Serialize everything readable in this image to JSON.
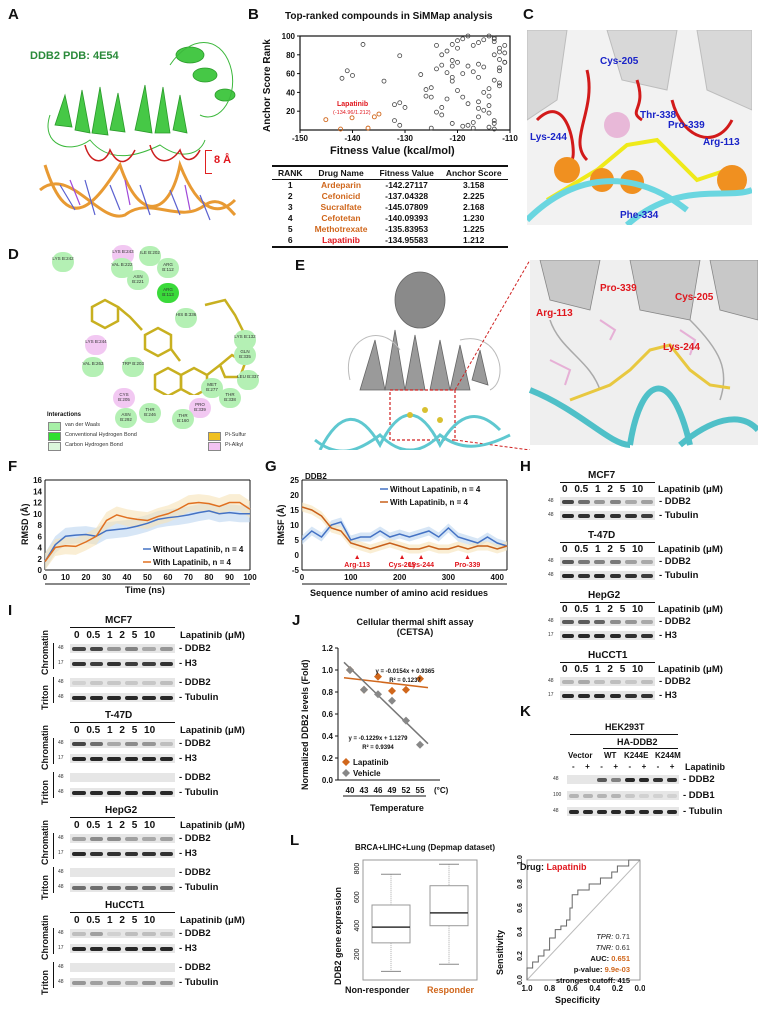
{
  "panels": {
    "A": {
      "label": "A",
      "title": "DDB2 PDB: 4E54",
      "scale": "8 Å",
      "colors": {
        "protein": "#3fbf3f",
        "dna": "#e89a33",
        "loops": "#cc1f1f"
      }
    },
    "B": {
      "label": "B",
      "title": "Top-ranked compounds in SiMMap analysis",
      "annotation": "Lapatinib",
      "annotation_sub": "(-134.96/1.212)"
    },
    "C": {
      "label": "C",
      "residues": [
        "Cys-205",
        "Thr-338",
        "Lys-244",
        "Pro-339",
        "Arg-113",
        "Phe-334"
      ]
    },
    "D": {
      "label": "D",
      "legend_title": "Interactions",
      "legend": [
        {
          "name": "van der Waals",
          "color": "#a7f0a7"
        },
        {
          "name": "Conventional Hydrogen Bond",
          "color": "#2ee02e"
        },
        {
          "name": "Carbon Hydrogen Bond",
          "color": "#dcf7dc"
        },
        {
          "name": "Pi-Sulfur",
          "color": "#f0c020"
        },
        {
          "name": "Pi-Alkyl",
          "color": "#f3c3f3"
        }
      ],
      "residues": [
        {
          "name": "LYS B:242",
          "type": "vdw"
        },
        {
          "name": "LYS B:243",
          "type": "alkyl"
        },
        {
          "name": "ILE B:202",
          "type": "vdw"
        },
        {
          "name": "VAL B:222",
          "type": "vdw"
        },
        {
          "name": "ARG B:112",
          "type": "vdw"
        },
        {
          "name": "ASN B:221",
          "type": "vdw"
        },
        {
          "name": "ARG B:113",
          "type": "hbond"
        },
        {
          "name": "HIS B:336",
          "type": "vdw"
        },
        {
          "name": "LYS B:244",
          "type": "alkyl"
        },
        {
          "name": "LYS B:132",
          "type": "vdw"
        },
        {
          "name": "GLN B:335",
          "type": "vdw"
        },
        {
          "name": "VAL B:263",
          "type": "vdw"
        },
        {
          "name": "TRP B:203",
          "type": "vdw"
        },
        {
          "name": "LEU B:337",
          "type": "vdw"
        },
        {
          "name": "MET B:277",
          "type": "vdw"
        },
        {
          "name": "THR B:338",
          "type": "vdw"
        },
        {
          "name": "CYS B:205",
          "type": "alkyl"
        },
        {
          "name": "PRO B:339",
          "type": "alkyl"
        },
        {
          "name": "THR B:246",
          "type": "vdw"
        },
        {
          "name": "ASN B:292",
          "type": "vdw"
        },
        {
          "name": "THR B:160",
          "type": "vdw"
        }
      ]
    },
    "E": {
      "label": "E",
      "zoom_residues": [
        "Pro-339",
        "Cys-205",
        "Arg-113",
        "Lys-244"
      ]
    },
    "F": {
      "label": "F"
    },
    "G": {
      "label": "G",
      "subtitle": "DDB2"
    },
    "H": {
      "label": "H",
      "lane_header": "0  0.5  1  2  5  10",
      "treatment": "Lapatinib (μM)",
      "blots": [
        {
          "cell": "MCF7",
          "rows": [
            {
              "name": "DDB2",
              "mw": "48"
            },
            {
              "name": "Tubulin",
              "mw": "48"
            }
          ]
        },
        {
          "cell": "T-47D",
          "rows": [
            {
              "name": "DDB2",
              "mw": "48"
            },
            {
              "name": "Tubulin",
              "mw": "48"
            }
          ]
        },
        {
          "cell": "HepG2",
          "rows": [
            {
              "name": "DDB2",
              "mw": "48"
            },
            {
              "name": "H3",
              "mw": "17"
            }
          ]
        },
        {
          "cell": "HuCCT1",
          "rows": [
            {
              "name": "DDB2",
              "mw": "48"
            },
            {
              "name": "H3",
              "mw": "17"
            }
          ]
        }
      ]
    },
    "I": {
      "label": "I",
      "lane_header": "0  0.5  1  2  5  10",
      "treatment": "Lapatinib (μM)",
      "fraction_labels": [
        "Chromatin",
        "Triton"
      ],
      "blots": [
        {
          "cell": "MCF7",
          "rows": [
            {
              "name": "DDB2",
              "mw": "48"
            },
            {
              "name": "H3",
              "mw": "17"
            },
            {
              "name": "DDB2",
              "mw": "48"
            },
            {
              "name": "Tubulin",
              "mw": "48"
            }
          ]
        },
        {
          "cell": "T-47D",
          "rows": [
            {
              "name": "DDB2",
              "mw": "48"
            },
            {
              "name": "H3",
              "mw": "17"
            },
            {
              "name": "DDB2",
              "mw": "48"
            },
            {
              "name": "Tubulin",
              "mw": "48"
            }
          ]
        },
        {
          "cell": "HepG2",
          "rows": [
            {
              "name": "DDB2",
              "mw": "48"
            },
            {
              "name": "H3",
              "mw": "17"
            },
            {
              "name": "DDB2",
              "mw": "48"
            },
            {
              "name": "Tubulin",
              "mw": "48"
            }
          ]
        },
        {
          "cell": "HuCCT1",
          "rows": [
            {
              "name": "DDB2",
              "mw": "48"
            },
            {
              "name": "H3",
              "mw": "17"
            },
            {
              "name": "DDB2",
              "mw": "48"
            },
            {
              "name": "Tubulin",
              "mw": "48"
            }
          ]
        }
      ]
    },
    "J": {
      "label": "J"
    },
    "K": {
      "label": "K",
      "cell": "HEK293T",
      "construct": "HA-DDB2",
      "groups": [
        "Vector",
        "WT",
        "K244E",
        "K244M"
      ],
      "signs": "-  +  -  +  -  +  -  +",
      "treatment": "Lapatinib",
      "rows": [
        {
          "name": "DDB2",
          "mw": "48"
        },
        {
          "name": "DDB1",
          "mw": "100"
        },
        {
          "name": "Tubulin",
          "mw": "48"
        }
      ]
    },
    "L": {
      "label": "L",
      "title": "BRCA+LIHC+Lung (Depmap dataset)"
    }
  },
  "chart_data": [
    {
      "panel": "B",
      "type": "scatter",
      "title": "Top-ranked compounds in SiMMap analysis",
      "xlabel": "Fitness Value (kcal/mol)",
      "ylabel": "Anchor Score Rank",
      "xlim": [
        -150,
        -110
      ],
      "ylim": [
        0,
        100
      ],
      "xticks": [
        -150,
        -140,
        -130,
        -120,
        -110
      ],
      "yticks": [
        20,
        40,
        60,
        80,
        100
      ],
      "highlight_points": [
        {
          "x": -145.08,
          "y": 11,
          "color": "#d0671c"
        },
        {
          "x": -142.27,
          "y": 1,
          "color": "#d0671c"
        },
        {
          "x": -140.09,
          "y": 13,
          "color": "#d0671c"
        },
        {
          "x": -137.04,
          "y": 2,
          "color": "#d0671c"
        },
        {
          "x": -135.84,
          "y": 14,
          "color": "#d0671c"
        },
        {
          "x": -134.96,
          "y": 17,
          "color": "#d0671c"
        }
      ],
      "points": [
        [
          -138,
          91
        ],
        [
          -142,
          55
        ],
        [
          -141,
          63
        ],
        [
          -140,
          58
        ],
        [
          -134,
          52
        ],
        [
          -131,
          79
        ],
        [
          -132,
          27
        ],
        [
          -131,
          29
        ],
        [
          -130,
          24
        ],
        [
          -131,
          5
        ],
        [
          -132,
          10
        ],
        [
          -127,
          59
        ],
        [
          -126,
          43
        ],
        [
          -126,
          36
        ],
        [
          -125,
          35
        ],
        [
          -125,
          45
        ],
        [
          -124,
          65
        ],
        [
          -124,
          19
        ],
        [
          -123,
          16
        ],
        [
          -123,
          24
        ],
        [
          -122,
          33
        ],
        [
          -123,
          80
        ],
        [
          -122,
          84
        ],
        [
          -121,
          74
        ],
        [
          -121,
          68
        ],
        [
          -120,
          72
        ],
        [
          -120,
          87
        ],
        [
          -121,
          52
        ],
        [
          -121,
          56
        ],
        [
          -120,
          42
        ],
        [
          -119,
          35
        ],
        [
          -118,
          28
        ],
        [
          -119,
          60
        ],
        [
          -119,
          97
        ],
        [
          -118,
          100
        ],
        [
          -117,
          90
        ],
        [
          -117,
          62
        ],
        [
          -116,
          56
        ],
        [
          -116,
          30
        ],
        [
          -115,
          40
        ],
        [
          -116,
          23
        ],
        [
          -115,
          21
        ],
        [
          -114,
          26
        ],
        [
          -114,
          18
        ],
        [
          -113,
          10
        ],
        [
          -113,
          7
        ],
        [
          -113,
          80
        ],
        [
          -112,
          87
        ],
        [
          -112,
          75
        ],
        [
          -111,
          72
        ],
        [
          -111,
          72
        ],
        [
          -112,
          47
        ],
        [
          -112,
          66
        ],
        [
          -113,
          97
        ],
        [
          -113,
          94
        ],
        [
          -112,
          83
        ],
        [
          -114,
          44
        ],
        [
          -114,
          36
        ],
        [
          -115,
          67
        ],
        [
          -116,
          70
        ],
        [
          -115,
          96
        ],
        [
          -116,
          93
        ],
        [
          -114,
          100
        ],
        [
          -113,
          98
        ],
        [
          -112,
          50
        ],
        [
          -111,
          90
        ],
        [
          -111,
          82
        ],
        [
          -112,
          63
        ],
        [
          -113,
          53
        ],
        [
          -114,
          3
        ],
        [
          -113,
          1
        ],
        [
          -117,
          8
        ],
        [
          -116,
          14
        ],
        [
          -117,
          2
        ],
        [
          -118,
          5
        ],
        [
          -119,
          4
        ],
        [
          -121,
          7
        ],
        [
          -122,
          61
        ],
        [
          -123,
          69
        ],
        [
          -124,
          90
        ],
        [
          -120,
          95
        ],
        [
          -121,
          91
        ],
        [
          -118,
          68
        ],
        [
          -125,
          2
        ]
      ]
    },
    {
      "panel": "F",
      "type": "line",
      "xlabel": "Time (ns)",
      "ylabel": "RMSD (Å)",
      "xlim": [
        0,
        100
      ],
      "ylim": [
        0,
        16
      ],
      "xticks": [
        0,
        10,
        20,
        30,
        40,
        50,
        60,
        70,
        80,
        90,
        100
      ],
      "yticks": [
        0,
        2,
        4,
        6,
        8,
        10,
        12,
        14,
        16
      ],
      "x": [
        0,
        5,
        10,
        15,
        20,
        25,
        30,
        35,
        40,
        45,
        50,
        55,
        60,
        65,
        70,
        75,
        80,
        85,
        90,
        95,
        100
      ],
      "series": [
        {
          "name": "Without Lapatinib, n = 4",
          "color": "#4472c4",
          "values": [
            1.5,
            4.5,
            6.0,
            6.2,
            6.3,
            6.0,
            7.0,
            7.2,
            7.4,
            7.8,
            8.3,
            9.0,
            9.3,
            9.5,
            9.8,
            10.2,
            10.5,
            10.0,
            10.2,
            10.0,
            10.0
          ]
        },
        {
          "name": "With Lapatinib, n = 4",
          "color": "#e07020",
          "values": [
            1.5,
            4.0,
            4.3,
            4.2,
            5.0,
            6.0,
            8.8,
            9.8,
            9.3,
            9.0,
            8.8,
            9.5,
            10.0,
            10.8,
            11.8,
            12.0,
            11.8,
            11.3,
            12.0,
            12.0,
            10.8
          ]
        }
      ]
    },
    {
      "panel": "G",
      "type": "line",
      "title": "DDB2",
      "xlabel": "Sequence number of amino acid residues",
      "ylabel": "RMSF (Å)",
      "xlim": [
        0,
        420
      ],
      "ylim": [
        -5,
        25
      ],
      "xticks": [
        0,
        100,
        200,
        300,
        400
      ],
      "yticks": [
        -5,
        0,
        5,
        10,
        15,
        20,
        25
      ],
      "x": [
        0,
        20,
        40,
        60,
        80,
        100,
        120,
        140,
        160,
        180,
        200,
        220,
        240,
        260,
        280,
        300,
        320,
        340,
        360,
        380,
        400,
        420
      ],
      "series": [
        {
          "name": "Without Lapatinib, n = 4",
          "color": "#4472c4",
          "values": [
            5,
            8,
            6,
            10,
            11,
            5,
            6,
            6,
            8,
            6,
            7,
            6,
            7,
            8,
            6,
            9,
            6,
            5,
            4,
            6,
            4,
            3
          ]
        },
        {
          "name": "With Lapatinib, n = 4",
          "color": "#c8601a",
          "values": [
            16,
            15,
            13,
            9,
            8,
            4,
            3,
            2,
            3,
            4,
            3,
            2,
            2,
            3,
            2,
            2,
            3,
            2,
            3,
            3,
            2,
            3
          ]
        }
      ],
      "annotations": [
        {
          "label": "Arg-113",
          "x": 113
        },
        {
          "label": "Cys-205",
          "x": 205
        },
        {
          "label": "Lys-244",
          "x": 244
        },
        {
          "label": "Pro-339",
          "x": 339
        }
      ]
    },
    {
      "panel": "J",
      "type": "scatter",
      "title": "Cellular thermal shift assay (CETSA)",
      "xlabel": "Temperature",
      "ylabel": "Normalized DDB2 levels (Fold)",
      "categories": [
        "40",
        "43",
        "46",
        "49",
        "52",
        "55"
      ],
      "unit": "(°C)",
      "ylim": [
        0,
        1.2
      ],
      "yticks": [
        0.0,
        0.2,
        0.4,
        0.6,
        0.8,
        1.0,
        1.2
      ],
      "series": [
        {
          "name": "Lapatinib",
          "color": "#d0671c",
          "values": [
            1.0,
            0.82,
            0.94,
            0.81,
            0.82,
            0.92
          ],
          "fit": "y = -0.0154x + 0.9365",
          "r2": "R² = 0.1237"
        },
        {
          "name": "Vehicle",
          "color": "#888888",
          "values": [
            1.0,
            0.82,
            0.78,
            0.72,
            0.54,
            0.32
          ],
          "fit": "y = -0.1229x + 1.1279",
          "r2": "R² = 0.9394"
        }
      ]
    },
    {
      "panel": "L-box",
      "type": "box",
      "title": "BRCA+LIHC+Lung (Depmap dataset)",
      "ylabel": "DDB2 gene expression",
      "yticks": [
        200,
        400,
        600,
        800
      ],
      "categories": [
        "Non-responder",
        "Responder"
      ],
      "boxes": [
        {
          "name": "Non-responder",
          "min": 80,
          "q1": 280,
          "median": 390,
          "q3": 545,
          "max": 760,
          "color": "#111111"
        },
        {
          "name": "Responder",
          "min": 130,
          "q1": 400,
          "median": 490,
          "q3": 680,
          "max": 830,
          "color": "#d0671c"
        }
      ]
    },
    {
      "panel": "L-roc",
      "type": "line",
      "xlabel": "Specificity",
      "ylabel": "Sensitivity",
      "xticks": [
        1.0,
        0.8,
        0.6,
        0.4,
        0.2,
        0.0
      ],
      "yticks": [
        0.0,
        0.2,
        0.4,
        0.6,
        0.8,
        1.0
      ],
      "drug_label": "Drug:",
      "drug": "Lapatinib",
      "stats": {
        "TPR": "0.71",
        "TNR": "0.61",
        "AUC": "0.651",
        "p-value": "9.9e-03",
        "strongest cutoff": "415"
      }
    }
  ]
}
